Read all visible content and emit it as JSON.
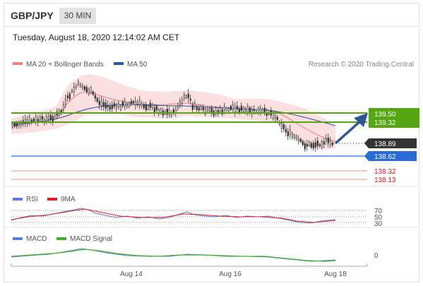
{
  "header": {
    "pair": "GBP/JPY",
    "timeframe": "30 MIN",
    "datetime": "Tuesday, August 18, 2020 12:14:02 AM CET"
  },
  "credit": "Research © 2020 Trading Central",
  "chart_data": [
    {
      "type": "line",
      "panel": "price",
      "series": [
        {
          "name": "MA 20 + Bollinger Bands",
          "color": "#f08080"
        },
        {
          "name": "MA 50",
          "color": "#2b5797"
        }
      ],
      "levels": [
        {
          "value": "139.50",
          "color": "#55a613",
          "kind": "resistance"
        },
        {
          "value": "139.32",
          "color": "#55a613",
          "kind": "resistance"
        },
        {
          "value": "138.89",
          "color": "#333333",
          "kind": "last price"
        },
        {
          "value": "138.62",
          "color": "#2a6bd4",
          "kind": "pivot"
        },
        {
          "value": "138.32",
          "color": "#e02020",
          "kind": "support"
        },
        {
          "value": "138.13",
          "color": "#e02020",
          "kind": "support"
        }
      ],
      "x_ticks": [
        "Aug 14",
        "Aug 16",
        "Aug 18"
      ]
    },
    {
      "type": "line",
      "panel": "rsi",
      "series": [
        {
          "name": "RSI",
          "color": "#5b7fd6"
        },
        {
          "name": "9MA",
          "color": "#e02020"
        }
      ],
      "levels": [
        "70",
        "50",
        "30"
      ]
    },
    {
      "type": "line",
      "panel": "macd",
      "series": [
        {
          "name": "MACD",
          "color": "#5b7fd6"
        },
        {
          "name": "MACD Signal",
          "color": "#3fae2a"
        }
      ],
      "levels": [
        "0"
      ]
    }
  ]
}
